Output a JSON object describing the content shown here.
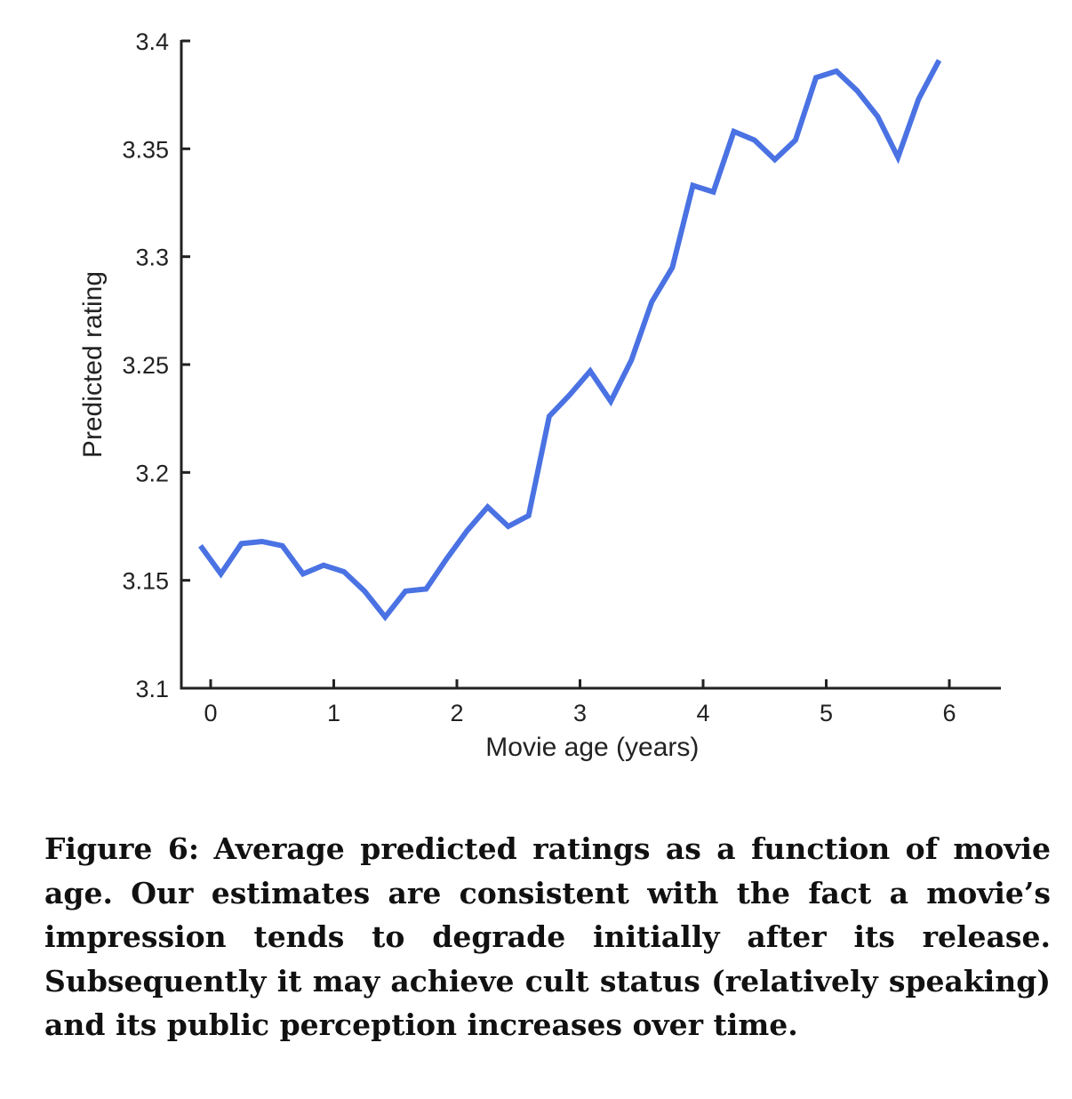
{
  "chart_data": {
    "type": "line",
    "title": "",
    "xlabel": "Movie age (years)",
    "ylabel": "Predicted rating",
    "xlim": [
      -0.25,
      6.4
    ],
    "ylim": [
      3.1,
      3.4
    ],
    "xticks": [
      0,
      1,
      2,
      3,
      4,
      5,
      6
    ],
    "xtick_labels": [
      "0",
      "1",
      "2",
      "3",
      "4",
      "5",
      "6"
    ],
    "yticks": [
      3.1,
      3.15,
      3.2,
      3.25,
      3.3,
      3.35,
      3.4
    ],
    "ytick_labels": [
      "3.1",
      "3.15",
      "3.2",
      "3.25",
      "3.3",
      "3.35",
      "3.4"
    ],
    "grid": false,
    "legend": "none",
    "series": [
      {
        "name": "Average predicted rating",
        "color": "#4a72e3",
        "x": [
          -0.083,
          0.083,
          0.25,
          0.417,
          0.583,
          0.75,
          0.917,
          1.083,
          1.25,
          1.417,
          1.583,
          1.75,
          1.917,
          2.083,
          2.25,
          2.417,
          2.583,
          2.75,
          2.917,
          3.083,
          3.25,
          3.417,
          3.583,
          3.75,
          3.917,
          4.083,
          4.25,
          4.417,
          4.583,
          4.75,
          4.917,
          5.083,
          5.25,
          5.417,
          5.583,
          5.75,
          5.917
        ],
        "values": [
          3.166,
          3.153,
          3.167,
          3.168,
          3.166,
          3.153,
          3.157,
          3.154,
          3.145,
          3.133,
          3.145,
          3.146,
          3.16,
          3.173,
          3.184,
          3.175,
          3.18,
          3.226,
          3.236,
          3.247,
          3.233,
          3.252,
          3.279,
          3.295,
          3.333,
          3.33,
          3.358,
          3.354,
          3.345,
          3.354,
          3.383,
          3.386,
          3.377,
          3.365,
          3.346,
          3.373,
          3.391
        ]
      }
    ]
  },
  "caption": {
    "label": "Figure 6:",
    "text": "Average predicted ratings as a function of movie age. Our estimates are consistent with the fact a movie’s impression tends to degrade initially after its release. Subsequently it may achieve cult status (relatively speaking) and its public perception increases over time."
  }
}
